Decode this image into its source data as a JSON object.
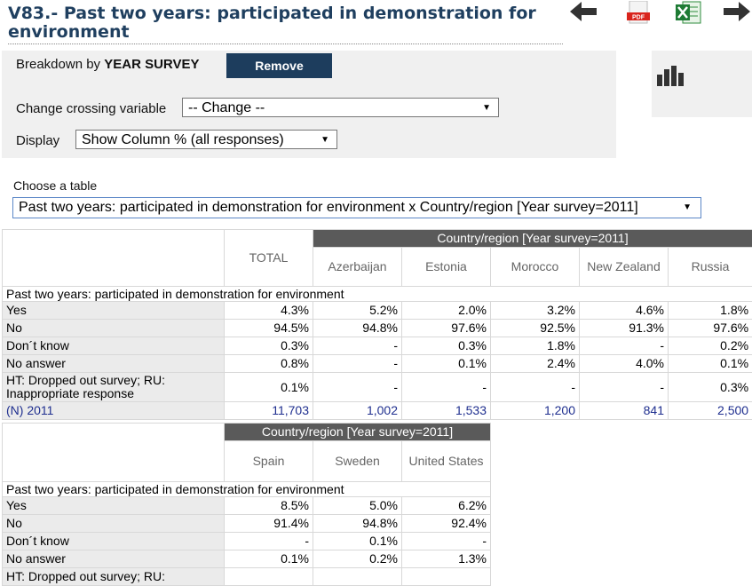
{
  "title": "V83.- Past two years: participated in demonstration for environment",
  "toolbar": {
    "back_icon": "arrow-left-icon",
    "pdf_icon": "pdf-icon",
    "pdf_label": "PDF",
    "excel_icon": "excel-icon",
    "forward_icon": "arrow-right-icon"
  },
  "panel": {
    "breakdown_prefix": "Breakdown by",
    "breakdown_variable": "YEAR SURVEY",
    "remove_label": "Remove",
    "crossing_label": "Change crossing variable",
    "crossing_value": "-- Change --",
    "display_label": "Display",
    "display_value": "Show Column % (all responses)"
  },
  "chart_icon": "bar-chart-icon",
  "choose_label": "Choose a table",
  "table_select_value": "Past two years: participated in demonstration for environment x Country/region [Year survey=2011]",
  "table1": {
    "group_header": "Country/region [Year survey=2011]",
    "total_header": "TOTAL",
    "columns": [
      "Azerbaijan",
      "Estonia",
      "Morocco",
      "New Zealand",
      "Russia"
    ],
    "section_label": "Past two years: participated in demonstration for environment",
    "rows": [
      {
        "label": "Yes",
        "values": [
          "4.3%",
          "5.2%",
          "2.0%",
          "3.2%",
          "4.6%",
          "1.8%"
        ]
      },
      {
        "label": "No",
        "values": [
          "94.5%",
          "94.8%",
          "97.6%",
          "92.5%",
          "91.3%",
          "97.6%"
        ]
      },
      {
        "label": "Don´t know",
        "values": [
          "0.3%",
          "-",
          "0.3%",
          "1.8%",
          "-",
          "0.2%"
        ]
      },
      {
        "label": "No answer",
        "values": [
          "0.8%",
          "-",
          "0.1%",
          "2.4%",
          "4.0%",
          "0.1%"
        ]
      },
      {
        "label": "HT: Dropped out survey; RU: Inappropriate response",
        "values": [
          "0.1%",
          "-",
          "-",
          "-",
          "-",
          "0.3%"
        ]
      }
    ],
    "n_row": {
      "label": "(N) 2011",
      "values": [
        "11,703",
        "1,002",
        "1,533",
        "1,200",
        "841",
        "2,500"
      ]
    }
  },
  "table2": {
    "group_header": "Country/region [Year survey=2011]",
    "columns": [
      "Spain",
      "Sweden",
      "United States"
    ],
    "section_label": "Past two years: participated in demonstration for environment",
    "rows": [
      {
        "label": "Yes",
        "values": [
          "8.5%",
          "5.0%",
          "6.2%"
        ]
      },
      {
        "label": "No",
        "values": [
          "91.4%",
          "94.8%",
          "92.4%"
        ]
      },
      {
        "label": "Don´t know",
        "values": [
          "-",
          "0.1%",
          "-"
        ]
      },
      {
        "label": "No answer",
        "values": [
          "0.1%",
          "0.2%",
          "1.3%"
        ]
      },
      {
        "label": "HT: Dropped out survey; RU:",
        "values": [
          "",
          "",
          ""
        ]
      }
    ]
  }
}
